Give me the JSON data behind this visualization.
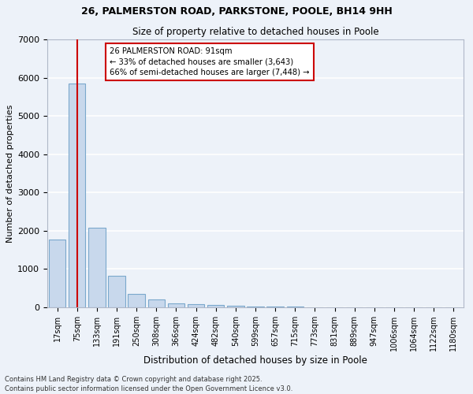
{
  "title1": "26, PALMERSTON ROAD, PARKSTONE, POOLE, BH14 9HH",
  "title2": "Size of property relative to detached houses in Poole",
  "xlabel": "Distribution of detached houses by size in Poole",
  "ylabel": "Number of detached properties",
  "bar_color": "#c8d8ec",
  "bar_edge_color": "#7aa8cc",
  "background_color": "#edf2f9",
  "grid_color": "#ffffff",
  "categories": [
    "17sqm",
    "75sqm",
    "133sqm",
    "191sqm",
    "250sqm",
    "308sqm",
    "366sqm",
    "424sqm",
    "482sqm",
    "540sqm",
    "599sqm",
    "657sqm",
    "715sqm",
    "773sqm",
    "831sqm",
    "889sqm",
    "947sqm",
    "1006sqm",
    "1064sqm",
    "1122sqm",
    "1180sqm"
  ],
  "values": [
    1780,
    5850,
    2080,
    820,
    360,
    200,
    110,
    80,
    65,
    40,
    25,
    20,
    12,
    8,
    5,
    4,
    3,
    2,
    1,
    1,
    0
  ],
  "vline_x": 1.0,
  "vline_color": "#cc0000",
  "annotation_title": "26 PALMERSTON ROAD: 91sqm",
  "annotation_line1": "← 33% of detached houses are smaller (3,643)",
  "annotation_line2": "66% of semi-detached houses are larger (7,448) →",
  "annotation_box_color": "#ffffff",
  "annotation_border_color": "#cc0000",
  "ylim": [
    0,
    7000
  ],
  "yticks": [
    0,
    1000,
    2000,
    3000,
    4000,
    5000,
    6000,
    7000
  ],
  "footer_line1": "Contains HM Land Registry data © Crown copyright and database right 2025.",
  "footer_line2": "Contains public sector information licensed under the Open Government Licence v3.0."
}
